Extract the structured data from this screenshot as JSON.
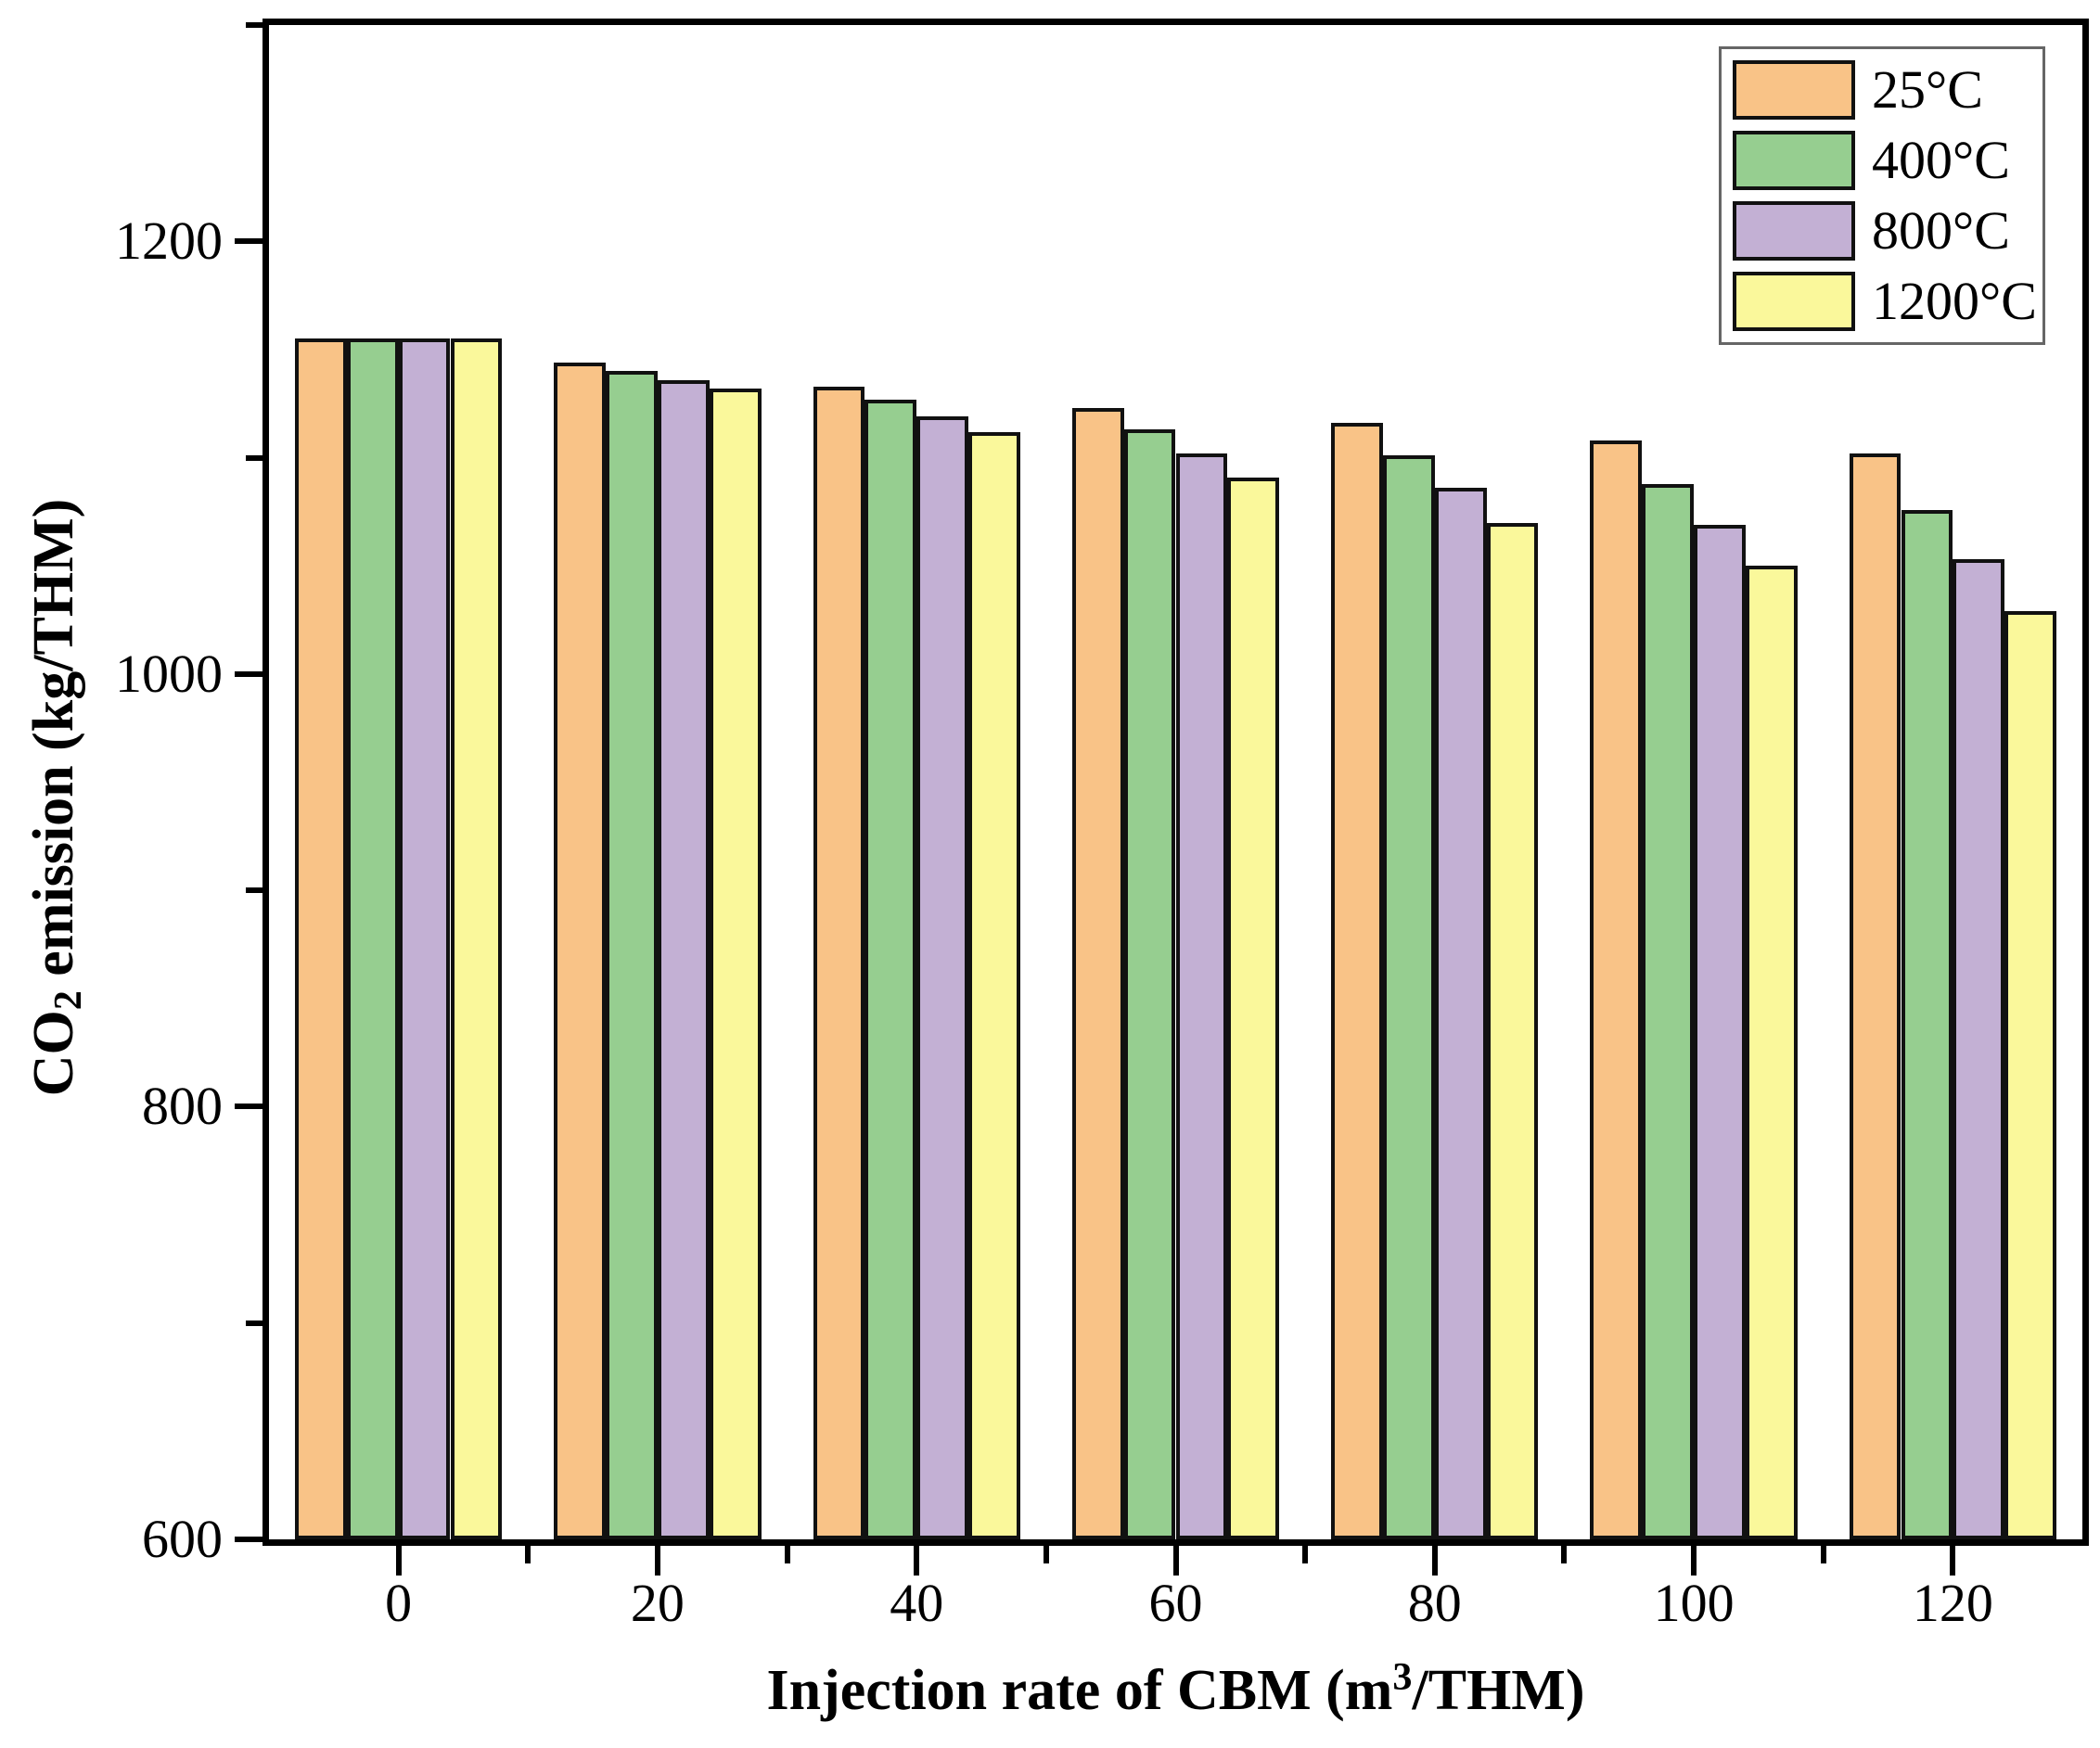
{
  "chart_data": {
    "type": "bar",
    "title": "",
    "categories": [
      0,
      20,
      40,
      60,
      80,
      100,
      120
    ],
    "series": [
      {
        "name": "25°C",
        "color": "#F9C387",
        "values": [
          1155,
          1144,
          1133,
          1123,
          1116,
          1108,
          1102
        ]
      },
      {
        "name": "400°C",
        "color": "#96CE90",
        "values": [
          1155,
          1140,
          1127,
          1113,
          1101,
          1088,
          1076
        ]
      },
      {
        "name": "800°C",
        "color": "#C3B0D4",
        "values": [
          1155,
          1136,
          1119,
          1102,
          1086,
          1069,
          1053
        ]
      },
      {
        "name": "1200°C",
        "color": "#FAF89B",
        "values": [
          1155,
          1132,
          1112,
          1091,
          1070,
          1050,
          1029
        ]
      }
    ],
    "xlabel_text": "Injection rate of CBM (m³/THM)",
    "xlabel_parts": [
      {
        "text": "Injection rate of CBM (m"
      },
      {
        "text": "3",
        "style": "sup"
      },
      {
        "text": "/THM)"
      }
    ],
    "ylabel_text": "CO₂ emission (kg/THM)",
    "ylabel_parts": [
      {
        "text": "CO"
      },
      {
        "text": "2",
        "style": "sub"
      },
      {
        "text": " emission (kg/THM)"
      }
    ],
    "x_major_ticks": [
      0,
      20,
      40,
      60,
      80,
      100,
      120
    ],
    "x_minor_ticks": [
      10,
      30,
      50,
      70,
      90,
      110
    ],
    "y_major_ticks": [
      600,
      800,
      1000,
      1200
    ],
    "y_minor_ticks": [
      700,
      900,
      1100,
      1300
    ],
    "xlim": [
      -10,
      130
    ],
    "ylim": [
      600,
      1300
    ],
    "bar_width_units": 4,
    "grid": false,
    "legend": {
      "position": "top-right",
      "entries": [
        "25°C",
        "400°C",
        "800°C",
        "1200°C"
      ]
    },
    "axis_color": "#000000",
    "background_color": "#ffffff"
  }
}
